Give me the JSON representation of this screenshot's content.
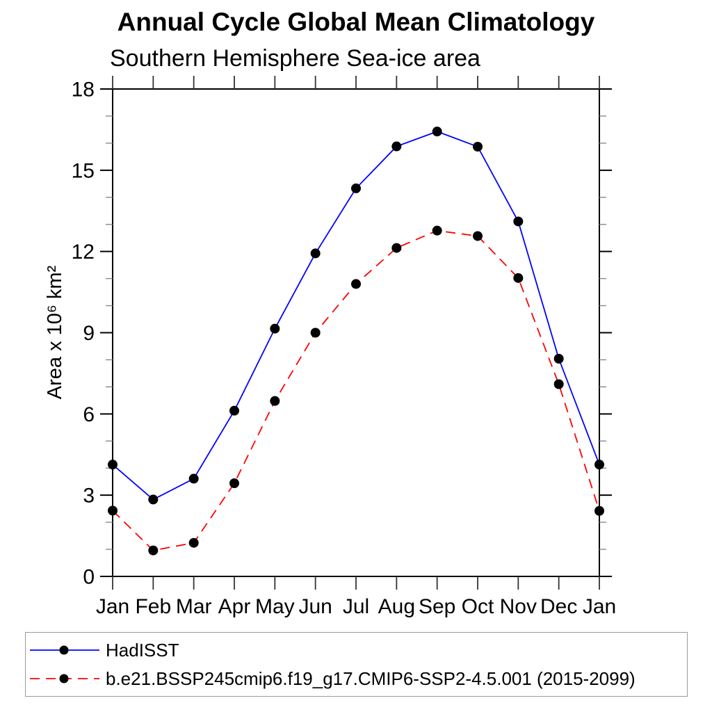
{
  "title": "Annual Cycle Global Mean Climatology",
  "subtitle": "Southern Hemisphere Sea-ice area",
  "colors": {
    "background": "#ffffff",
    "axis": "#000000",
    "minor_tick": "#8a8a8a",
    "month_tick": "#333333",
    "marker": "#000000",
    "text": "#000000",
    "legend_border": "#9a9a9a",
    "series_hadisst": "#0000ff",
    "series_model": "#ff0000"
  },
  "chart_data": {
    "type": "line",
    "title": "Annual Cycle Global Mean Climatology",
    "subtitle": "Southern Hemisphere Sea-ice area",
    "xlabel": "",
    "ylabel": "Area x 10⁶ km²",
    "categories": [
      "Jan",
      "Feb",
      "Mar",
      "Apr",
      "May",
      "Jun",
      "Jul",
      "Aug",
      "Sep",
      "Oct",
      "Nov",
      "Dec",
      "Jan"
    ],
    "ylim": [
      0,
      18
    ],
    "ytick_major": [
      0,
      3,
      6,
      9,
      12,
      15,
      18
    ],
    "ytick_minor_step": 1,
    "grid": false,
    "legend_position": "bottom",
    "marker": "filled-black-circle",
    "series": [
      {
        "name": "HadISST",
        "color": "#0000ff",
        "line_style": "solid",
        "values": [
          4.13,
          2.84,
          3.61,
          6.12,
          9.15,
          11.93,
          14.33,
          15.88,
          16.43,
          15.87,
          13.11,
          8.04,
          4.13
        ]
      },
      {
        "name": "b.e21.BSSP245cmip6.f19_g17.CMIP6-SSP2-4.5.001 (2015-2099)",
        "color": "#ff0000",
        "line_style": "dashed",
        "values": [
          2.43,
          0.96,
          1.24,
          3.44,
          6.48,
          9.0,
          10.8,
          12.13,
          12.77,
          12.57,
          11.02,
          7.1,
          2.42
        ]
      }
    ]
  }
}
